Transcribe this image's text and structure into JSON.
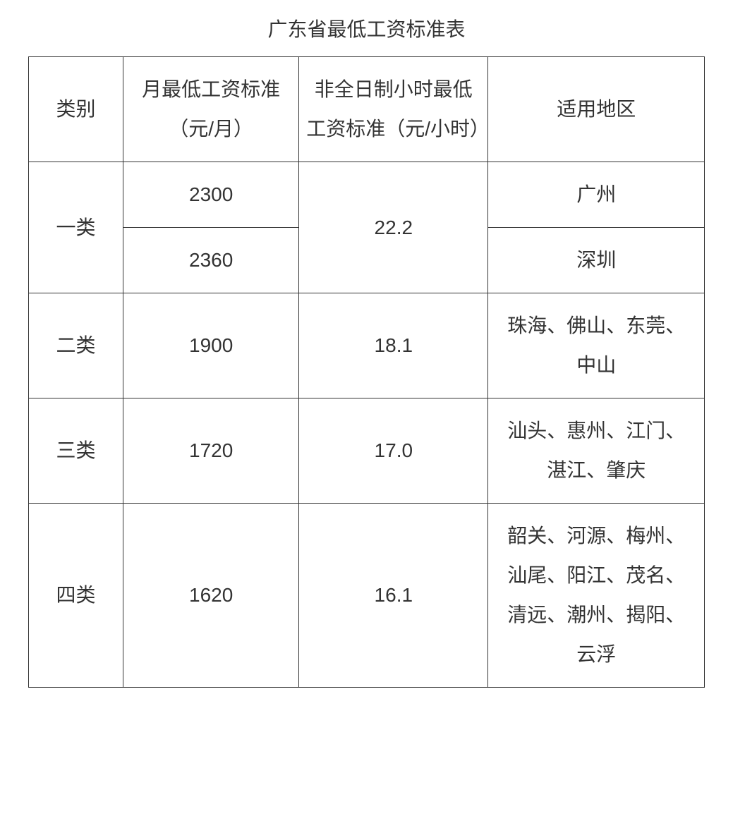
{
  "title": "广东省最低工资标准表",
  "columns": {
    "category": "类别",
    "monthly": "月最低工资标准（元/月）",
    "hourly": "非全日制小时最低工资标准（元/小时）",
    "region": "适用地区"
  },
  "rows": {
    "cat1": {
      "label": "一类",
      "monthly1": "2300",
      "monthly2": "2360",
      "hourly": "22.2",
      "region1": "广州",
      "region2": "深圳"
    },
    "cat2": {
      "label": "二类",
      "monthly": "1900",
      "hourly": "18.1",
      "region": "珠海、佛山、东莞、中山"
    },
    "cat3": {
      "label": "三类",
      "monthly": "1720",
      "hourly": "17.0",
      "region": "汕头、惠州、江门、湛江、肇庆"
    },
    "cat4": {
      "label": "四类",
      "monthly": "1620",
      "hourly": "16.1",
      "region": "韶关、河源、梅州、汕尾、阳江、茂名、清远、潮州、揭阳、云浮"
    }
  },
  "styling": {
    "title_fontsize": 28,
    "cell_fontsize": 28,
    "border_color": "#333333",
    "text_color": "#333333",
    "background_color": "#ffffff",
    "border_width": 1.5,
    "line_height": 2.0,
    "column_widths": {
      "category": "14%",
      "monthly": "26%",
      "hourly": "28%",
      "region": "32%"
    }
  }
}
